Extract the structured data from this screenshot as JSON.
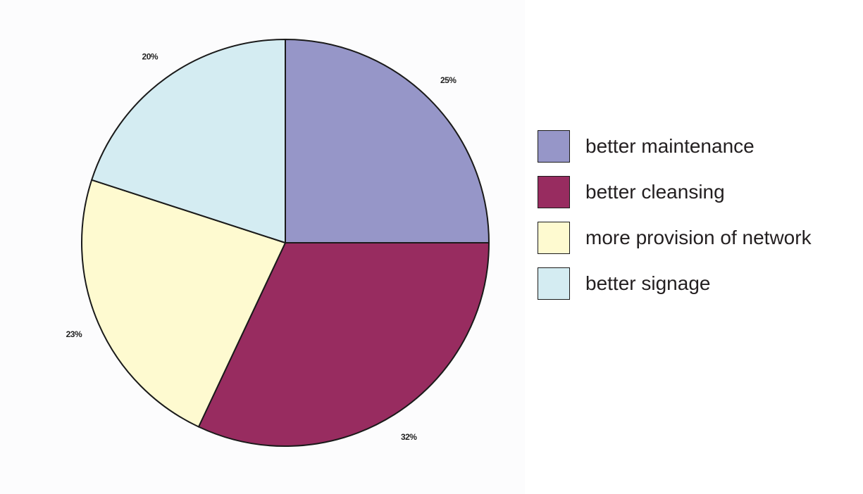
{
  "chart_data": {
    "type": "pie",
    "title": "",
    "slices": [
      {
        "label": "better maintenance",
        "value": 25,
        "value_label": "25%",
        "color": "#9696c8"
      },
      {
        "label": "better cleansing",
        "value": 32,
        "value_label": "32%",
        "color": "#982c60"
      },
      {
        "label": "more provision of network",
        "value": 23,
        "value_label": "23%",
        "color": "#fefad0"
      },
      {
        "label": "better signage",
        "value": 20,
        "value_label": "20%",
        "color": "#d4ecf2"
      }
    ],
    "start_angle_deg": 0,
    "direction": "clockwise",
    "legend_position": "right"
  },
  "legend": {
    "items": [
      {
        "label": "better maintenance",
        "color": "#9696c8"
      },
      {
        "label": "better cleansing",
        "color": "#982c60"
      },
      {
        "label": "more provision of network",
        "color": "#fefad0"
      },
      {
        "label": "better signage",
        "color": "#d4ecf2"
      }
    ]
  }
}
